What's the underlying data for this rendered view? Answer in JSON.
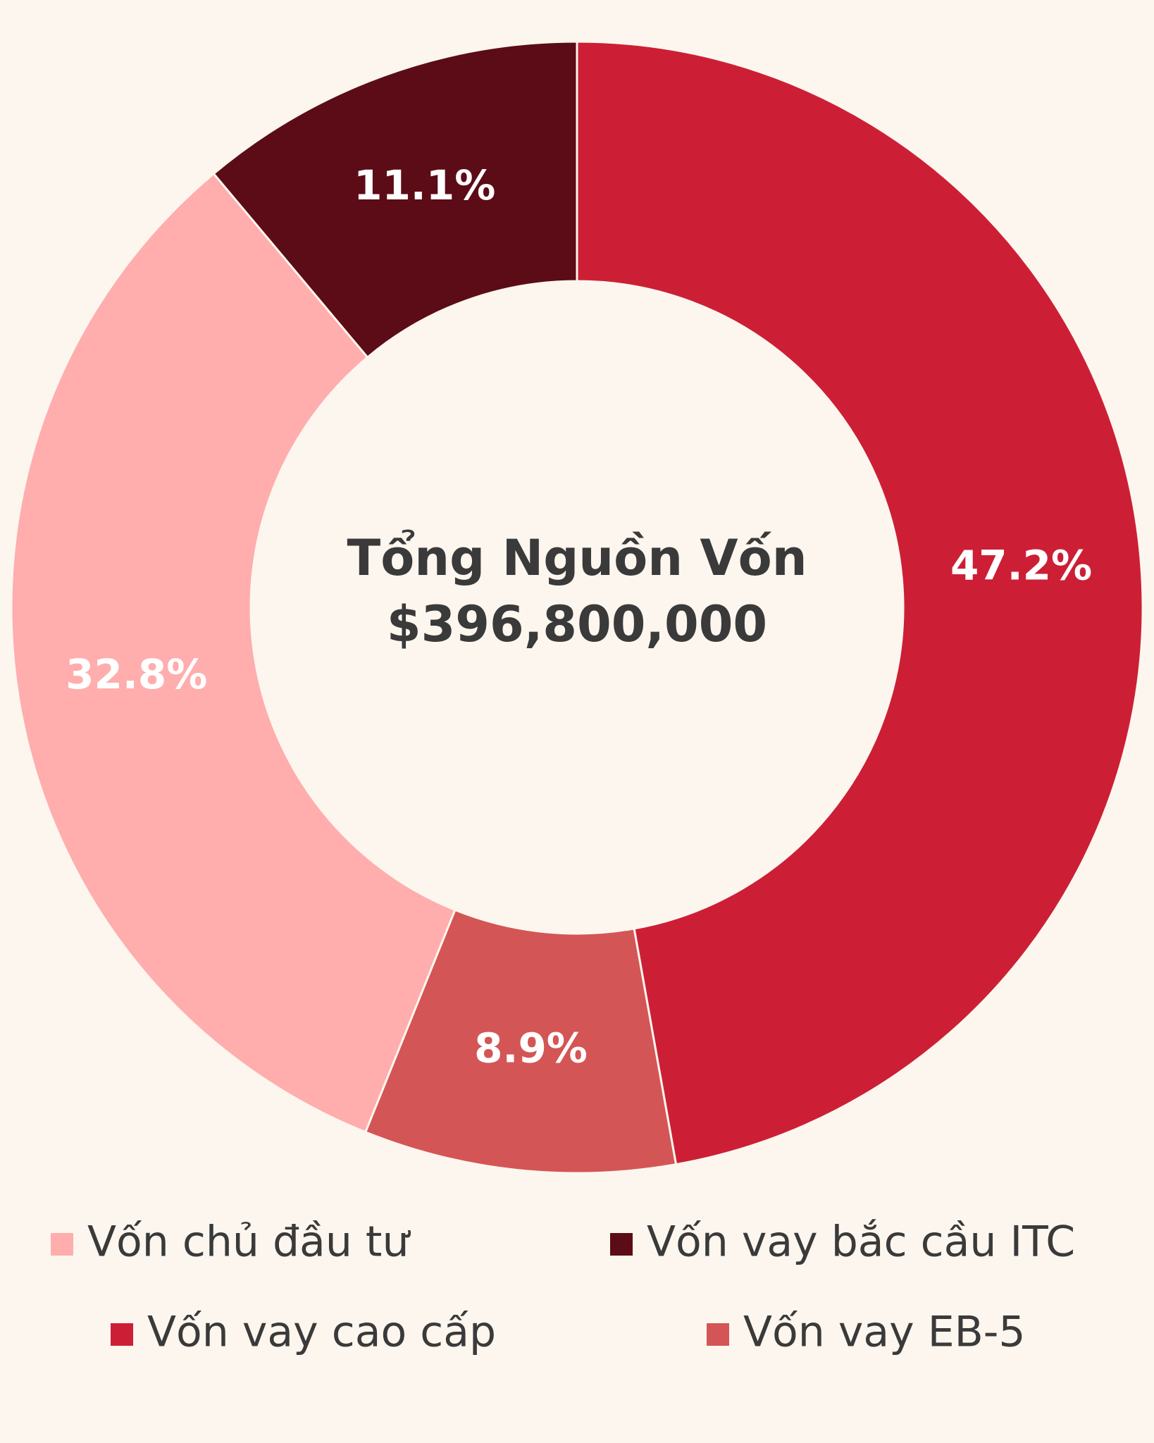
{
  "chart_data": {
    "type": "donut",
    "center_title": "Tổng Nguồn Vốn",
    "center_value": "$396,800,000",
    "categories": [
      "Vốn vay cao cấp",
      "Vốn vay EB-5",
      "Vốn chủ đầu tư",
      "Vốn vay bắc cầu ITC"
    ],
    "values": [
      47.2,
      8.9,
      32.8,
      11.1
    ],
    "value_labels": [
      "47.2%",
      "8.9%",
      "32.8%",
      "11.1%"
    ],
    "colors": [
      "#cc1f35",
      "#d45555",
      "#ffadad",
      "#5c0c16"
    ]
  }
}
